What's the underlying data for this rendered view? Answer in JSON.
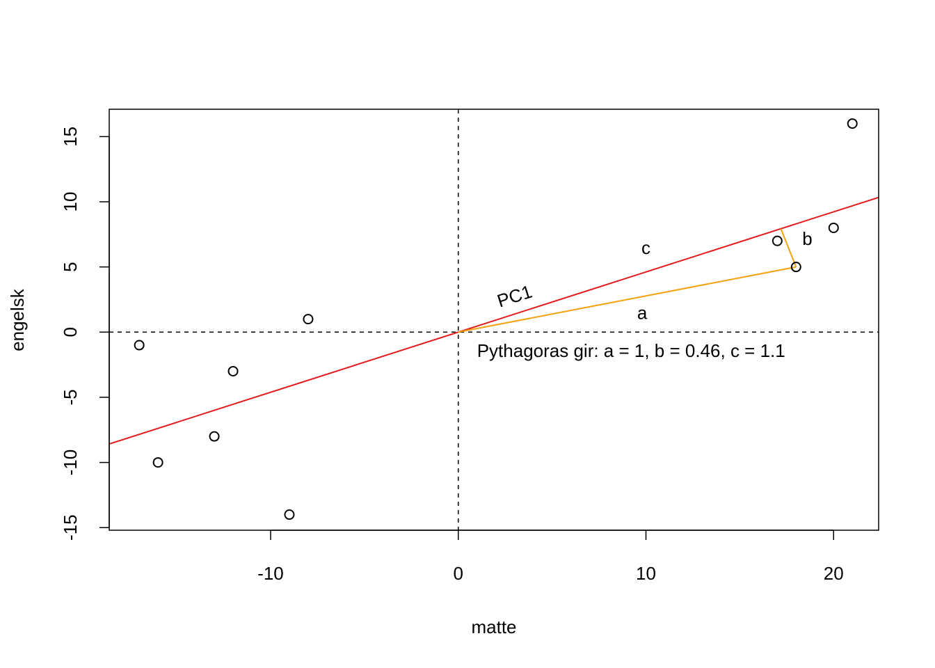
{
  "chart_data": {
    "type": "scatter",
    "title": "",
    "xlabel": "matte",
    "ylabel": "engelsk",
    "xlim": [
      -18.6,
      22.4
    ],
    "ylim": [
      -15.2,
      17.1
    ],
    "x_ticks": [
      -10,
      0,
      10,
      20
    ],
    "x_tick_labels": [
      "-10",
      "0",
      "10",
      "20"
    ],
    "y_ticks": [
      -15,
      -10,
      -5,
      0,
      5,
      10,
      15
    ],
    "y_tick_labels": [
      "-15",
      "-10",
      "-5",
      "0",
      "5",
      "10",
      "15"
    ],
    "grid": false,
    "points": [
      {
        "x": -17,
        "y": -1
      },
      {
        "x": -16,
        "y": -10
      },
      {
        "x": -13,
        "y": -8
      },
      {
        "x": -12,
        "y": -3
      },
      {
        "x": -9,
        "y": -14
      },
      {
        "x": -8,
        "y": 1
      },
      {
        "x": 17,
        "y": 7
      },
      {
        "x": 18,
        "y": 5
      },
      {
        "x": 20,
        "y": 8
      },
      {
        "x": 21,
        "y": 16
      }
    ],
    "reference_lines": [
      {
        "orientation": "vertical",
        "at": 0,
        "style": "dashed",
        "color": "#000000"
      },
      {
        "orientation": "horizontal",
        "at": 0,
        "style": "dashed",
        "color": "#000000"
      }
    ],
    "pc1_line": {
      "slope": 0.4615,
      "intercept": 0,
      "color": "#e31a1c",
      "label": "PC1"
    },
    "triangle": {
      "color": "#f5a10e",
      "origin": {
        "x": 0,
        "y": 0
      },
      "point": {
        "x": 18,
        "y": 5
      },
      "projection": {
        "x": 17.19,
        "y": 7.93
      },
      "labels": {
        "a": "a",
        "b": "b",
        "c": "c"
      }
    },
    "annotation": "Pythagoras gir: a = 1, b = 0.46, c = 1.1"
  }
}
